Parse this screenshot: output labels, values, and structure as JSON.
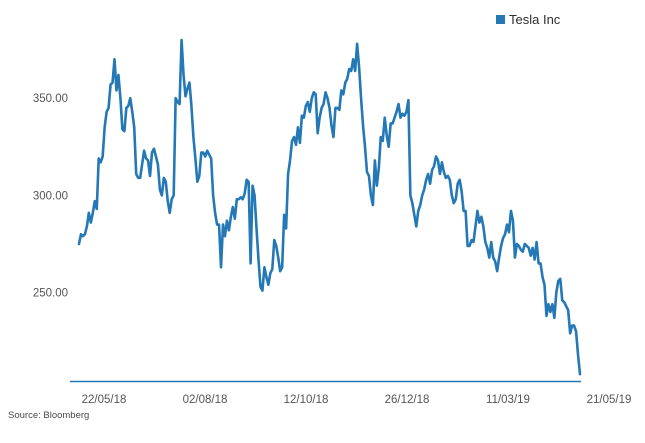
{
  "legend": {
    "label": "Tesla Inc",
    "color": "#2378b5"
  },
  "source": "Source: Bloomberg",
  "chart_data": {
    "type": "line",
    "title": "",
    "xlabel": "",
    "ylabel": "",
    "ylim": [
      205,
      382
    ],
    "yticks": [
      "250.00",
      "300.00",
      "350.00"
    ],
    "yticks_values": [
      250,
      300,
      350
    ],
    "xticks": [
      "22/05/18",
      "02/08/18",
      "12/10/18",
      "26/12/18",
      "11/03/19",
      "21/05/19"
    ],
    "grid": false,
    "legend_position": "top-right",
    "series": [
      {
        "name": "Tesla Inc",
        "color": "#2378b5",
        "values": [
          275,
          280,
          279,
          280,
          284,
          291,
          286,
          291,
          297,
          293,
          319,
          317,
          320,
          335,
          343,
          345,
          357,
          358,
          370,
          354,
          362,
          350,
          334,
          333,
          345,
          346,
          350,
          343,
          335,
          311,
          309,
          309,
          316,
          323,
          319,
          318,
          310,
          322,
          324,
          320,
          316,
          303,
          300,
          309,
          307,
          297,
          291,
          298,
          300,
          350,
          348,
          347,
          380,
          362,
          351,
          355,
          358,
          346,
          330,
          319,
          307,
          310,
          322,
          322,
          320,
          323,
          321,
          319,
          300,
          291,
          285,
          285,
          263,
          285,
          279,
          287,
          282,
          289,
          294,
          288,
          298,
          298,
          299,
          298,
          301,
          308,
          307,
          265,
          305,
          300,
          283,
          267,
          253,
          251,
          263,
          258,
          254,
          260,
          262,
          277,
          274,
          268,
          261,
          263,
          290,
          283,
          311,
          318,
          328,
          330,
          326,
          335,
          327,
          341,
          340,
          346,
          348,
          343,
          350,
          353,
          352,
          332,
          340,
          345,
          347,
          353,
          350,
          345,
          336,
          330,
          345,
          345,
          344,
          354,
          352,
          358,
          360,
          365,
          364,
          370,
          364,
          378,
          366,
          350,
          336,
          325,
          312,
          310,
          300,
          295,
          318,
          305,
          314,
          330,
          328,
          340,
          331,
          325,
          337,
          337,
          340,
          343,
          347,
          340,
          342,
          341,
          343,
          349,
          300,
          296,
          290,
          284,
          292,
          295,
          300,
          303,
          308,
          311,
          306,
          313,
          315,
          320,
          318,
          311,
          317,
          312,
          309,
          310,
          308,
          300,
          296,
          298,
          306,
          308,
          302,
          292,
          292,
          274,
          274,
          277,
          276,
          284,
          292,
          286,
          289,
          284,
          276,
          273,
          268,
          276,
          268,
          266,
          261,
          268,
          274,
          278,
          280,
          285,
          281,
          292,
          287,
          268,
          275,
          274,
          272,
          271,
          275,
          274,
          273,
          269,
          273,
          267,
          276,
          265,
          265,
          258,
          254,
          238,
          244,
          240,
          244,
          237,
          250,
          256,
          257,
          246,
          245,
          243,
          241,
          229,
          233,
          233,
          230,
          218,
          208
        ]
      }
    ]
  }
}
